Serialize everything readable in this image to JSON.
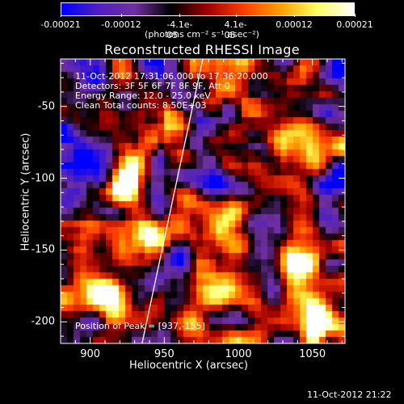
{
  "colorbar": {
    "tick_labels": [
      "-0.00021",
      "-0.00012",
      "-4.1e-05",
      "4.1e-05",
      "0.00012",
      "0.00021"
    ],
    "unit_label": "(photons cm⁻² s⁻¹ asec⁻²)"
  },
  "title": "Reconstructed RHESSI Image",
  "annotations": {
    "time_range": "11-Oct-2012 17:31:06.000 to 17:36:20.000",
    "detectors": "Detectors: 3F 5F 6F 7F 8F 9F, Att 0",
    "energy": "Energy Range: 12.0 - 25.0 keV",
    "clean": "Clean     Total counts: 8.50E+03",
    "peak": "Position of Peak = [937,-155]"
  },
  "axes": {
    "xlabel": "Heliocentric X (arcsec)",
    "ylabel": "Heliocentric Y (arcsec)",
    "x_ticks": [
      "900",
      "950",
      "1000",
      "1050"
    ],
    "y_ticks": [
      "-50",
      "-100",
      "-150",
      "-200"
    ],
    "x_range": [
      880,
      1072
    ],
    "y_range": [
      -215,
      -17
    ]
  },
  "footer_timestamp": "11-Oct-2012 21:22",
  "colors": {
    "background": "#000000",
    "limb_line": "#ffffff"
  },
  "colormap_stops": [
    "#0000ff",
    "#5020c0",
    "#7030a0",
    "#000000",
    "#a00000",
    "#ff4000",
    "#ffa000",
    "#ffff60",
    "#ffffff"
  ]
}
